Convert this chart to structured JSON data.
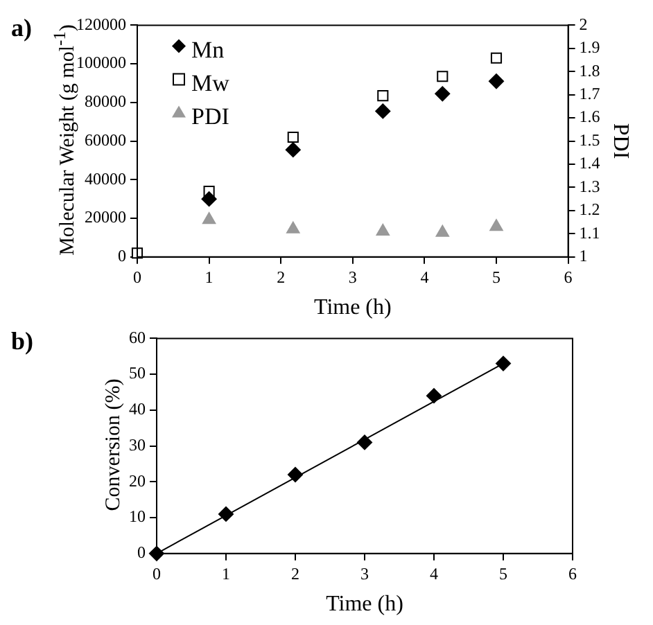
{
  "chart_data": [
    {
      "type": "scatter",
      "annotations": [
        "a)"
      ],
      "xlabel": "Time (h)",
      "ylabel": "Molecular Weight (g mol$^{-1}$)",
      "y2label": "PDI",
      "xlim": [
        0,
        6
      ],
      "xticks": [
        0,
        1,
        2,
        3,
        4,
        5,
        6
      ],
      "ylim": [
        0,
        120000
      ],
      "yticks": [
        0,
        20000,
        40000,
        60000,
        80000,
        100000,
        120000
      ],
      "y2lim": [
        1,
        2
      ],
      "y2ticks": [
        1,
        {
          "value": 1.1,
          "label": "1.1"
        },
        {
          "value": 1.2,
          "label": "1.2"
        },
        {
          "value": 1.3,
          "label": "1.3"
        },
        {
          "value": 1.4,
          "label": "1.4"
        },
        {
          "value": 1.5,
          "label": "1.5"
        },
        {
          "value": 1.6,
          "label": "1.6"
        },
        {
          "value": 1.7,
          "label": "1.7"
        },
        {
          "value": 1.8,
          "label": "1.8"
        },
        {
          "value": 1.9,
          "label": "1.9"
        },
        2
      ],
      "legend": "top left",
      "series": [
        {
          "name": "Mn",
          "color": "#000000",
          "marker": "diamond",
          "x": [
            1,
            2.17,
            3.42,
            4.25,
            5
          ],
          "values": [
            30000,
            55500,
            75500,
            84500,
            91000
          ]
        },
        {
          "name": "Mw",
          "color": "#000000",
          "marker": "square",
          "x": [
            0,
            1,
            2.17,
            3.42,
            4.25,
            5
          ],
          "values": [
            2000,
            34000,
            62000,
            83500,
            93500,
            103000
          ]
        },
        {
          "name": "PDI",
          "color": "#999999",
          "marker": "triangle",
          "axis": "y2",
          "x": [
            1,
            2.17,
            3.42,
            4.25,
            5
          ],
          "values": [
            1.16,
            1.12,
            1.11,
            1.105,
            1.13
          ]
        }
      ]
    },
    {
      "type": "scatter",
      "annotations": [
        "b)"
      ],
      "xlabel": "Time (h)",
      "ylabel": "Conversion (%)",
      "xlim": [
        0,
        6
      ],
      "xticks": [
        0,
        1,
        2,
        3,
        4,
        5,
        6
      ],
      "ylim": [
        0,
        60
      ],
      "yticks": [
        0,
        10,
        20,
        30,
        40,
        50,
        60
      ],
      "series": [
        {
          "color": "#000000",
          "marker": "diamond",
          "x": [
            0,
            1,
            2,
            3,
            4,
            5
          ],
          "values": [
            0,
            11,
            22,
            31,
            44,
            53
          ]
        },
        {
          "type": "line",
          "color": "#000000",
          "marker": "none",
          "line_style": "solid",
          "x": [
            0,
            5
          ],
          "values": [
            0,
            53
          ]
        }
      ]
    }
  ]
}
